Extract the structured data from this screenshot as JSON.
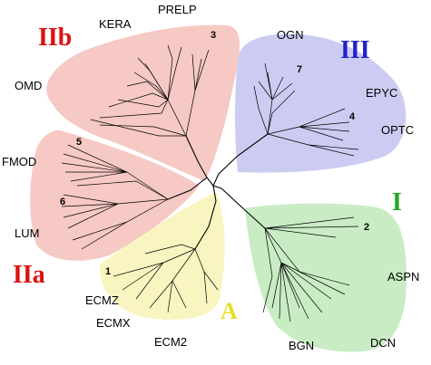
{
  "clades": [
    {
      "id": "IIb",
      "label": "IIb",
      "color": "#dd1111",
      "fill": "#f6c9c4"
    },
    {
      "id": "III",
      "label": "III",
      "color": "#2222cc",
      "fill": "#ccccf2"
    },
    {
      "id": "I",
      "label": "I",
      "color": "#22aa22",
      "fill": "#c9ecc4"
    },
    {
      "id": "IIa",
      "label": "IIa",
      "color": "#dd1111",
      "fill": "#f6c9c4"
    },
    {
      "id": "A",
      "label": "A",
      "color": "#e8e020",
      "fill": "#f8f5c0"
    }
  ],
  "genes": {
    "prelp": "PRELP",
    "kera": "KERA",
    "omd": "OMD",
    "ogn": "OGN",
    "epyc": "EPYC",
    "optc": "OPTC",
    "fmod": "FMOD",
    "lum": "LUM",
    "aspn": "ASPN",
    "bgn": "BGN",
    "dcn": "DCN",
    "ecmz": "ECMZ",
    "ecmx": "ECMX",
    "ecm2": "ECM2"
  },
  "markers": [
    "1",
    "2",
    "3",
    "4",
    "5",
    "6",
    "7"
  ]
}
